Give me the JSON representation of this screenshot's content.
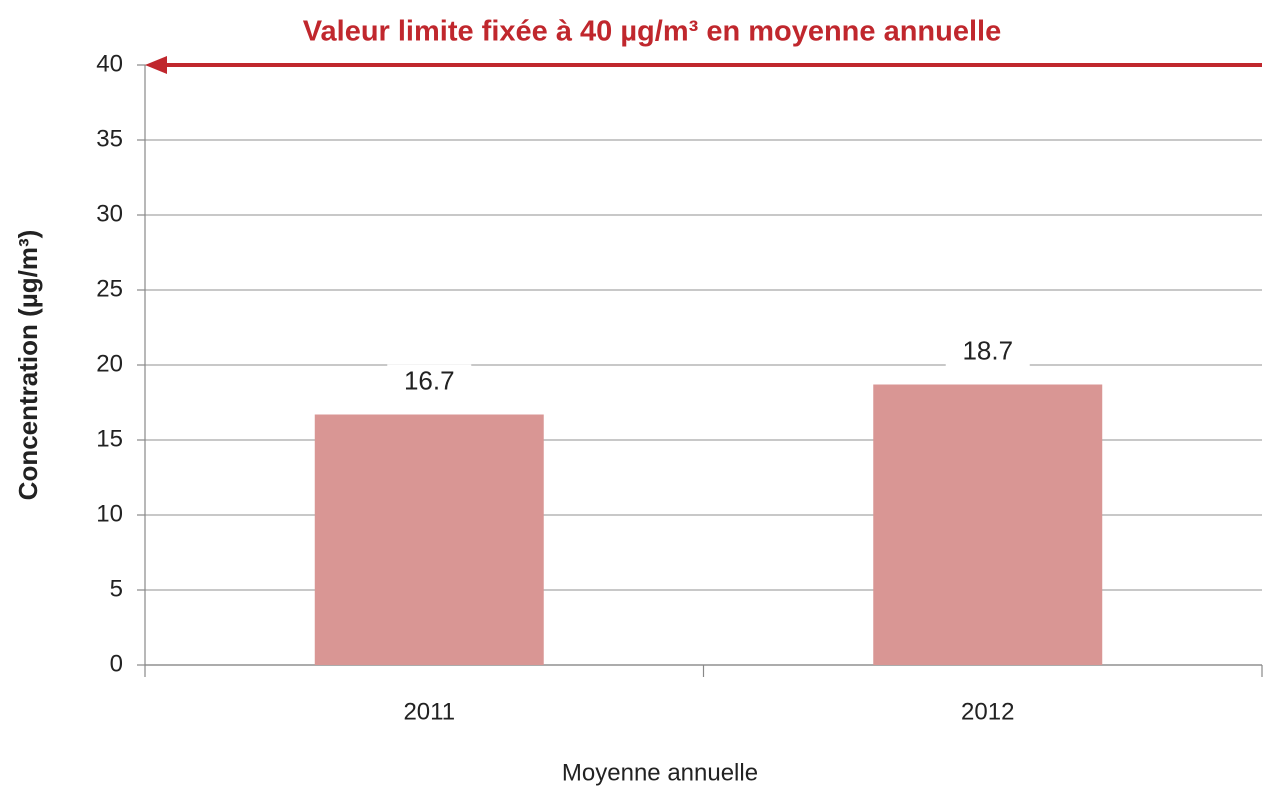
{
  "chart_data": {
    "type": "bar",
    "categories": [
      "2011",
      "2012"
    ],
    "values": [
      16.7,
      18.7
    ],
    "color": "#d99694",
    "ylim": [
      0,
      40
    ],
    "yticks": [
      0,
      5,
      10,
      15,
      20,
      25,
      30,
      35,
      40
    ],
    "grid": true,
    "y_label": "Concentration (µg/m³)",
    "x_label": "Moyenne annuelle",
    "annotations": [
      {
        "text": "Valeur limite fixée à 40 µg/m³ en moyenne annuelle",
        "y": 40,
        "color": "#c0272d"
      }
    ]
  }
}
